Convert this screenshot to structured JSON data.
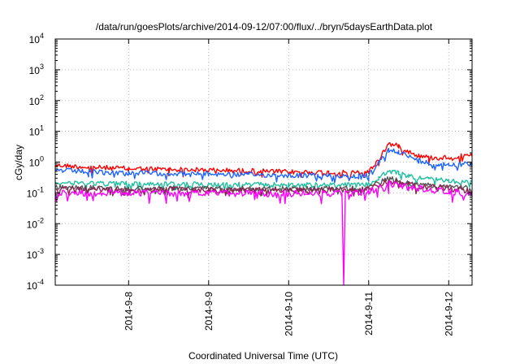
{
  "chart_data": {
    "type": "line",
    "title": "/data/run/goesPlots/archive/2014-09-12/07:00/flux/../bryn/5daysEarthData.plot",
    "xlabel": "Coordinated Universal Time (UTC)",
    "ylabel": "cGy/day",
    "yscale": "log",
    "ylim": [
      0.0001,
      10000
    ],
    "xlim": [
      "2014-09-07 02:00",
      "2014-09-12 07:00"
    ],
    "grid": true,
    "legend": "none",
    "x_ticks": [
      "2014-9-8",
      "2014-9-9",
      "2014-9-10",
      "2014-9-11",
      "2014-9-12"
    ],
    "y_ticks": [
      {
        "base": "10",
        "exp": "4"
      },
      {
        "base": "10",
        "exp": "3"
      },
      {
        "base": "10",
        "exp": "2"
      },
      {
        "base": "10",
        "exp": "1"
      },
      {
        "base": "10",
        "exp": "0"
      },
      {
        "base": "10",
        "exp": "-1"
      },
      {
        "base": "10",
        "exp": "-2"
      },
      {
        "base": "10",
        "exp": "-3"
      },
      {
        "base": "10",
        "exp": "-4"
      }
    ],
    "series": [
      {
        "color": "#ff0000",
        "x": [
          "2014-09-07 02:00",
          "2014-09-07 12:00",
          "2014-09-08 00:00",
          "2014-09-08 12:00",
          "2014-09-09 00:00",
          "2014-09-09 12:00",
          "2014-09-10 00:00",
          "2014-09-10 12:00",
          "2014-09-10 21:00",
          "2014-09-11 00:00",
          "2014-09-11 03:00",
          "2014-09-11 06:00",
          "2014-09-11 09:00",
          "2014-09-11 12:00",
          "2014-09-11 15:00",
          "2014-09-11 18:00",
          "2014-09-11 21:00",
          "2014-09-12 00:00",
          "2014-09-12 03:00",
          "2014-09-12 07:00"
        ],
        "y": [
          0.8,
          0.68,
          0.62,
          0.58,
          0.55,
          0.52,
          0.48,
          0.46,
          0.45,
          0.48,
          1.2,
          4.0,
          3.3,
          2.2,
          1.6,
          1.4,
          1.35,
          1.45,
          1.55,
          1.55
        ]
      },
      {
        "color": "#1e64ff",
        "x": [
          "2014-09-07 02:00",
          "2014-09-07 12:00",
          "2014-09-08 00:00",
          "2014-09-08 12:00",
          "2014-09-09 00:00",
          "2014-09-09 12:00",
          "2014-09-10 00:00",
          "2014-09-10 12:00",
          "2014-09-10 21:00",
          "2014-09-11 00:00",
          "2014-09-11 03:00",
          "2014-09-11 06:00",
          "2014-09-11 09:00",
          "2014-09-11 12:00",
          "2014-09-11 15:00",
          "2014-09-11 18:00",
          "2014-09-11 21:00",
          "2014-09-12 00:00",
          "2014-09-12 03:00",
          "2014-09-12 07:00"
        ],
        "y": [
          0.55,
          0.48,
          0.45,
          0.43,
          0.41,
          0.39,
          0.37,
          0.36,
          0.35,
          0.37,
          0.9,
          2.6,
          2.2,
          1.5,
          1.1,
          0.95,
          0.85,
          0.85,
          0.85,
          0.85
        ]
      },
      {
        "color": "#1fbf9f",
        "x": [
          "2014-09-07 02:00",
          "2014-09-08 00:00",
          "2014-09-09 00:00",
          "2014-09-10 00:00",
          "2014-09-10 21:00",
          "2014-09-11 00:00",
          "2014-09-11 03:00",
          "2014-09-11 06:00",
          "2014-09-11 09:00",
          "2014-09-11 12:00",
          "2014-09-11 18:00",
          "2014-09-12 00:00",
          "2014-09-12 07:00"
        ],
        "y": [
          0.22,
          0.2,
          0.19,
          0.18,
          0.18,
          0.19,
          0.3,
          0.5,
          0.45,
          0.35,
          0.28,
          0.24,
          0.22
        ]
      },
      {
        "color": "#555555",
        "x": [
          "2014-09-07 02:00",
          "2014-09-08 00:00",
          "2014-09-09 00:00",
          "2014-09-10 00:00",
          "2014-09-10 21:00",
          "2014-09-11 00:00",
          "2014-09-11 06:00",
          "2014-09-11 12:00",
          "2014-09-12 00:00",
          "2014-09-12 07:00"
        ],
        "y": [
          0.15,
          0.14,
          0.14,
          0.135,
          0.14,
          0.15,
          0.3,
          0.2,
          0.16,
          0.14
        ]
      },
      {
        "color": "#8b2252",
        "x": [
          "2014-09-07 02:00",
          "2014-09-08 00:00",
          "2014-09-09 00:00",
          "2014-09-10 00:00",
          "2014-09-10 21:00",
          "2014-09-11 00:00",
          "2014-09-11 06:00",
          "2014-09-11 12:00",
          "2014-09-12 00:00",
          "2014-09-12 07:00"
        ],
        "y": [
          0.13,
          0.125,
          0.12,
          0.12,
          0.125,
          0.13,
          0.25,
          0.18,
          0.14,
          0.12
        ]
      },
      {
        "color": "#ff00ff",
        "x": [
          "2014-09-07 02:00",
          "2014-09-08 00:00",
          "2014-09-09 00:00",
          "2014-09-10 00:00",
          "2014-09-10 16:00",
          "2014-09-10 16:30",
          "2014-09-10 17:00",
          "2014-09-10 21:00",
          "2014-09-11 00:00",
          "2014-09-11 06:00",
          "2014-09-11 12:00",
          "2014-09-12 00:00",
          "2014-09-12 07:00"
        ],
        "y": [
          0.1,
          0.098,
          0.095,
          0.095,
          0.095,
          0.0001,
          0.095,
          0.1,
          0.11,
          0.2,
          0.15,
          0.11,
          0.09
        ]
      }
    ]
  }
}
